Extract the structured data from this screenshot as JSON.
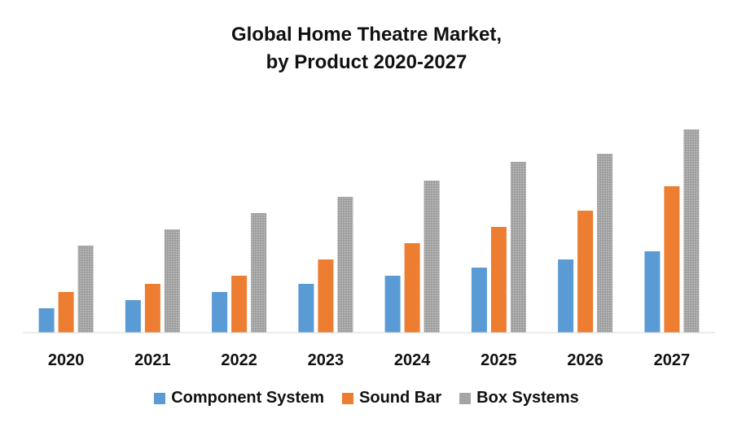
{
  "chart_data": {
    "type": "bar",
    "title_line1": "Global Home Theatre Market,",
    "title_line2": "by Product 2020-2027",
    "categories": [
      "2020",
      "2021",
      "2022",
      "2023",
      "2024",
      "2025",
      "2026",
      "2027"
    ],
    "series": [
      {
        "name": "Component System",
        "color": "#5b9bd5",
        "values": [
          3,
          4,
          5,
          6,
          7,
          8,
          9,
          10
        ]
      },
      {
        "name": "Sound Bar",
        "color": "#ed7d31",
        "values": [
          5,
          6,
          7,
          9,
          11,
          13,
          15,
          18
        ]
      },
      {
        "name": "Box Systems",
        "color": "#a5a5a5",
        "values": [
          10.7,
          12.7,
          14.7,
          16.7,
          18.7,
          21,
          22,
          25
        ]
      }
    ],
    "ylim": [
      0,
      30
    ],
    "grid": false,
    "legend_position": "bottom"
  }
}
